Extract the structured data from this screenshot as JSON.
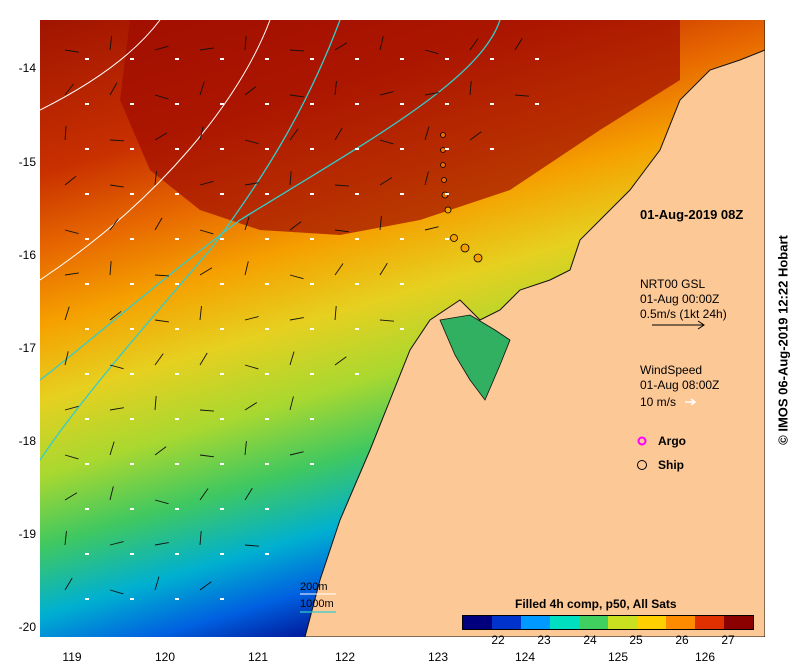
{
  "map": {
    "date_label": "01-Aug-2019 08Z",
    "credit": "© IMOS 06-Aug-2019 12:22 Hobart",
    "y_ticks": [
      "-14",
      "-15",
      "-16",
      "-17",
      "-18",
      "-19",
      "-20"
    ],
    "x_ticks": [
      "119",
      "120",
      "121",
      "122",
      "123",
      "124",
      "125",
      "126"
    ],
    "current_legend": {
      "line1": "NRT00 GSL",
      "line2": "01-Aug 00:00Z",
      "line3": "0.5m/s (1kt 24h)"
    },
    "wind_legend": {
      "line1": "WindSpeed",
      "line2": "01-Aug 08:00Z",
      "line3": "10 m/s"
    },
    "markers": {
      "argo": "Argo",
      "ship": "Ship"
    },
    "depth_legend": {
      "d200": "200m",
      "d1000": "1000m"
    },
    "colorbar": {
      "title": "Filled 4h comp, p50, All Sats",
      "ticks": [
        "22",
        "23",
        "24",
        "25",
        "26",
        "27"
      ],
      "colors": [
        "#00007f",
        "#0033cc",
        "#0099ff",
        "#00e0c0",
        "#40d060",
        "#c8e020",
        "#ffd000",
        "#ff8c00",
        "#e03000",
        "#8b0000"
      ]
    },
    "colors": {
      "land": "#fcc896",
      "coast": "#111111",
      "contour_200": "#ffffff",
      "contour_1000": "#33cccc",
      "argo": "#ff00ff"
    }
  }
}
